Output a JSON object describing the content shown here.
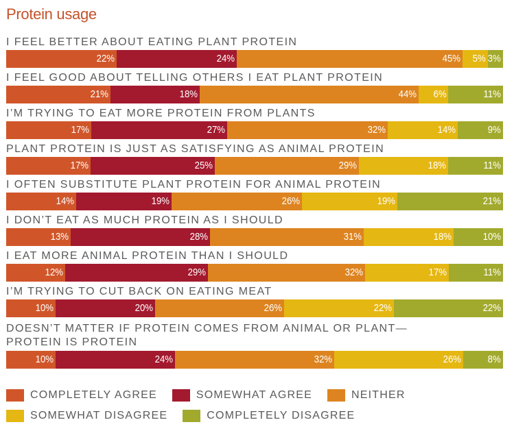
{
  "chart_data": {
    "type": "bar",
    "orientation": "horizontal-stacked-100",
    "title": "Protein usage",
    "categories": [
      "I FEEL BETTER ABOUT EATING PLANT PROTEIN",
      "I FEEL GOOD ABOUT TELLING OTHERS I EAT PLANT PROTEIN",
      "I’M TRYING TO EAT MORE PROTEIN FROM PLANTS",
      "PLANT PROTEIN IS JUST AS SATISFYING AS ANIMAL PROTEIN",
      "I OFTEN SUBSTITUTE PLANT PROTEIN FOR ANIMAL PROTEIN",
      "I DON’T EAT AS MUCH PROTEIN AS I SHOULD",
      "I EAT MORE ANIMAL PROTEIN THAN I SHOULD",
      "I’M TRYING TO CUT BACK ON EATING MEAT",
      "DOESN’T MATTER IF PROTEIN COMES FROM ANIMAL OR PLANT—\nPROTEIN IS PROTEIN"
    ],
    "series": [
      {
        "name": "COMPLETELY AGREE",
        "color": "#D0562A",
        "values": [
          22,
          21,
          17,
          17,
          14,
          13,
          12,
          10,
          10
        ]
      },
      {
        "name": "SOMEWHAT AGREE",
        "color": "#A3192E",
        "values": [
          24,
          18,
          27,
          25,
          19,
          28,
          29,
          20,
          24
        ]
      },
      {
        "name": "NEITHER",
        "color": "#DD8420",
        "values": [
          45,
          44,
          32,
          29,
          26,
          31,
          32,
          26,
          32
        ]
      },
      {
        "name": "SOMEWHAT DISAGREE",
        "color": "#E5B712",
        "values": [
          5,
          6,
          14,
          18,
          19,
          18,
          17,
          22,
          26
        ]
      },
      {
        "name": "COMPLETELY DISAGREE",
        "color": "#A2AA2D",
        "values": [
          3,
          11,
          9,
          11,
          21,
          10,
          11,
          22,
          8
        ]
      }
    ],
    "value_suffix": "%",
    "legend_position": "bottom",
    "grid": false
  }
}
